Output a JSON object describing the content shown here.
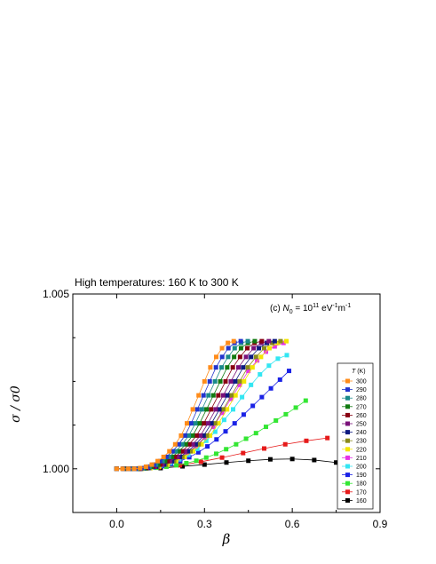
{
  "caption": "High temperatures: 160 K to 300 K",
  "chart_data": {
    "type": "line",
    "xlabel": "β",
    "ylabel": "σ / σ0",
    "xlim": [
      -0.15,
      0.9
    ],
    "ylim": [
      0.99875,
      1.005
    ],
    "xticks": [
      0.0,
      0.3,
      0.6,
      0.9
    ],
    "xtick_labels": [
      "0.0",
      "0.3",
      "0.6",
      "0.9"
    ],
    "yticks": [
      1.0,
      1.005
    ],
    "ytick_labels": [
      "1.000",
      "1.005"
    ],
    "annotation": {
      "prefix": "(c) ",
      "symbol": "N",
      "symbol_sub": "0",
      "equals": " = 10",
      "exp": "11",
      "unit1": " eV",
      "unit1_exp": "-1",
      "unit2": "m",
      "unit2_exp": "-1"
    },
    "legend_title": {
      "symbol": "T",
      "unit": " (K)"
    },
    "legend_position": "right",
    "series": [
      {
        "name": "300",
        "color": "#ff8c1a",
        "x": [
          0.0,
          0.02,
          0.04,
          0.06,
          0.08,
          0.1,
          0.12,
          0.14,
          0.16,
          0.18,
          0.2,
          0.22,
          0.24,
          0.26,
          0.28,
          0.3,
          0.32,
          0.34,
          0.36,
          0.38,
          0.4
        ],
        "y": [
          1.0,
          1.0,
          1.0,
          1.0,
          1.00002,
          1.00006,
          1.00012,
          1.00022,
          1.00034,
          1.0005,
          1.0007,
          1.00095,
          1.0013,
          1.0017,
          1.0021,
          1.0025,
          1.0029,
          1.0032,
          1.00345,
          1.0036,
          1.00365
        ]
      },
      {
        "name": "290",
        "color": "#2233cc",
        "x": [
          0.0,
          0.0212,
          0.0424,
          0.0636,
          0.0848,
          0.106,
          0.1272,
          0.1484,
          0.1696,
          0.1908,
          0.212,
          0.2332,
          0.2544,
          0.2756,
          0.2968,
          0.318,
          0.3392,
          0.3604,
          0.3816,
          0.4028,
          0.424
        ],
        "y": [
          1.0,
          1.0,
          1.0,
          1.0,
          1.00002,
          1.00006,
          1.00012,
          1.00022,
          1.00034,
          1.0005,
          1.0007,
          1.00095,
          1.0013,
          1.0017,
          1.0021,
          1.0025,
          1.0029,
          1.0032,
          1.00345,
          1.0036,
          1.00365
        ]
      },
      {
        "name": "280",
        "color": "#1a8a8a",
        "x": [
          0.0,
          0.0224,
          0.0448,
          0.0672,
          0.0896,
          0.112,
          0.1344,
          0.1568,
          0.1792,
          0.2016,
          0.224,
          0.2464,
          0.2688,
          0.2912,
          0.3136,
          0.336,
          0.3584,
          0.3808,
          0.4032,
          0.4256,
          0.448
        ],
        "y": [
          1.0,
          1.0,
          1.0,
          1.0,
          1.00002,
          1.00006,
          1.00012,
          1.00022,
          1.00034,
          1.0005,
          1.0007,
          1.00095,
          1.0013,
          1.0017,
          1.0021,
          1.0025,
          1.0029,
          1.0032,
          1.00345,
          1.0036,
          1.00365
        ]
      },
      {
        "name": "270",
        "color": "#117a11",
        "x": [
          0.0,
          0.0236,
          0.0472,
          0.0708,
          0.0944,
          0.118,
          0.1416,
          0.1652,
          0.1888,
          0.2124,
          0.236,
          0.2596,
          0.2832,
          0.3068,
          0.3304,
          0.354,
          0.3776,
          0.4012,
          0.4248,
          0.4484,
          0.472
        ],
        "y": [
          1.0,
          1.0,
          1.0,
          1.0,
          1.00002,
          1.00006,
          1.00012,
          1.00022,
          1.00034,
          1.0005,
          1.0007,
          1.00095,
          1.0013,
          1.0017,
          1.0021,
          1.0025,
          1.0029,
          1.0032,
          1.00345,
          1.0036,
          1.00365
        ]
      },
      {
        "name": "260",
        "color": "#880011",
        "x": [
          0.0,
          0.0248,
          0.0496,
          0.0744,
          0.0992,
          0.124,
          0.1488,
          0.1736,
          0.1984,
          0.2232,
          0.248,
          0.2728,
          0.2976,
          0.3224,
          0.3472,
          0.372,
          0.3968,
          0.4216,
          0.4464,
          0.4712,
          0.496
        ],
        "y": [
          1.0,
          1.0,
          1.0,
          1.0,
          1.00002,
          1.00006,
          1.00012,
          1.00022,
          1.00034,
          1.0005,
          1.0007,
          1.00095,
          1.0013,
          1.0017,
          1.0021,
          1.0025,
          1.0029,
          1.0032,
          1.00345,
          1.0036,
          1.00365
        ]
      },
      {
        "name": "250",
        "color": "#7a117a",
        "x": [
          0.0,
          0.026,
          0.052,
          0.078,
          0.104,
          0.13,
          0.156,
          0.182,
          0.208,
          0.234,
          0.26,
          0.286,
          0.312,
          0.338,
          0.364,
          0.39,
          0.416,
          0.442,
          0.468,
          0.494,
          0.52
        ],
        "y": [
          1.0,
          1.0,
          1.0,
          1.0,
          1.00002,
          1.00006,
          1.00012,
          1.00022,
          1.00034,
          1.0005,
          1.0007,
          1.00095,
          1.0013,
          1.0017,
          1.0021,
          1.0025,
          1.0029,
          1.0032,
          1.00345,
          1.0036,
          1.00365
        ]
      },
      {
        "name": "240",
        "color": "#0d1a80",
        "x": [
          0.0,
          0.027,
          0.054,
          0.081,
          0.108,
          0.135,
          0.162,
          0.189,
          0.216,
          0.243,
          0.27,
          0.297,
          0.324,
          0.351,
          0.378,
          0.405,
          0.432,
          0.459,
          0.486,
          0.513,
          0.54
        ],
        "y": [
          1.0,
          1.0,
          1.0,
          1.0,
          1.00002,
          1.00006,
          1.00012,
          1.00022,
          1.00034,
          1.0005,
          1.0007,
          1.00095,
          1.0013,
          1.0017,
          1.0021,
          1.0025,
          1.0029,
          1.0032,
          1.00345,
          1.0036,
          1.00365
        ]
      },
      {
        "name": "230",
        "color": "#8a8a1a",
        "x": [
          0.0,
          0.028,
          0.056,
          0.084,
          0.112,
          0.14,
          0.168,
          0.196,
          0.224,
          0.252,
          0.28,
          0.308,
          0.336,
          0.364,
          0.392,
          0.42,
          0.448,
          0.476,
          0.504,
          0.532,
          0.56
        ],
        "y": [
          1.0,
          1.0,
          1.0,
          1.0,
          1.00002,
          1.00006,
          1.00012,
          1.00022,
          1.00034,
          1.0005,
          1.0007,
          1.00095,
          1.0013,
          1.0017,
          1.0021,
          1.0025,
          1.0029,
          1.0032,
          1.00345,
          1.0036,
          1.00365
        ]
      },
      {
        "name": "220",
        "color": "#f2e600",
        "x": [
          0.0,
          0.029,
          0.058,
          0.087,
          0.116,
          0.145,
          0.174,
          0.203,
          0.232,
          0.261,
          0.29,
          0.319,
          0.348,
          0.377,
          0.406,
          0.435,
          0.464,
          0.493,
          0.522,
          0.551,
          0.58
        ],
        "y": [
          1.0,
          1.0,
          1.0,
          1.0,
          1.00002,
          1.00006,
          1.00012,
          1.00022,
          1.00034,
          1.0005,
          1.0007,
          1.00095,
          1.0013,
          1.0017,
          1.0021,
          1.0025,
          1.0029,
          1.0032,
          1.00345,
          1.0036,
          1.00365
        ]
      },
      {
        "name": "210",
        "color": "#e633e6",
        "x": [
          0.0,
          0.03,
          0.06,
          0.09,
          0.12,
          0.15,
          0.18,
          0.21,
          0.24,
          0.27,
          0.3,
          0.33,
          0.36,
          0.39,
          0.42,
          0.45,
          0.48,
          0.51,
          0.54,
          0.57
        ],
        "y": [
          1.0,
          1.0,
          1.0,
          1.00002,
          1.00006,
          1.00012,
          1.0002,
          1.0003,
          1.00045,
          1.00065,
          1.0009,
          1.0012,
          1.0016,
          1.002,
          1.0024,
          1.0028,
          1.0031,
          1.00335,
          1.0035,
          1.0036
        ]
      },
      {
        "name": "200",
        "color": "#33e6f2",
        "x": [
          0.0,
          0.0306,
          0.0612,
          0.0918,
          0.1224,
          0.153,
          0.1836,
          0.2142,
          0.2448,
          0.2754,
          0.306,
          0.3366,
          0.3672,
          0.3978,
          0.4284,
          0.459,
          0.4896,
          0.5202,
          0.5508,
          0.5814
        ],
        "y": [
          1.0,
          1.0,
          1.0,
          1.00002,
          1.00005,
          1.0001,
          1.00017,
          1.00027,
          1.0004,
          1.00057,
          1.0008,
          1.00106,
          1.0014,
          1.0017,
          1.00205,
          1.0024,
          1.0027,
          1.00295,
          1.00315,
          1.00325
        ]
      },
      {
        "name": "190",
        "color": "#1a22e6",
        "x": [
          0.0,
          0.031,
          0.062,
          0.093,
          0.124,
          0.155,
          0.186,
          0.217,
          0.248,
          0.279,
          0.31,
          0.341,
          0.372,
          0.403,
          0.434,
          0.465,
          0.496,
          0.527,
          0.558,
          0.589
        ],
        "y": [
          1.0,
          1.0,
          1.0,
          1.00001,
          1.00004,
          1.00008,
          1.00014,
          1.00022,
          1.00033,
          1.00047,
          1.00064,
          1.00084,
          1.00107,
          1.0013,
          1.00155,
          1.0018,
          1.00205,
          1.0023,
          1.00255,
          1.0028
        ]
      },
      {
        "name": "180",
        "color": "#33e633",
        "x": [
          0.0,
          0.034,
          0.068,
          0.102,
          0.136,
          0.17,
          0.204,
          0.238,
          0.272,
          0.306,
          0.34,
          0.374,
          0.408,
          0.442,
          0.476,
          0.51,
          0.544,
          0.578,
          0.612,
          0.646
        ],
        "y": [
          1.0,
          1.0,
          1.0,
          1.00001,
          1.00003,
          1.00006,
          1.0001,
          1.00016,
          1.00023,
          1.00032,
          1.00043,
          1.00056,
          1.0007,
          1.00086,
          1.00102,
          1.0012,
          1.00138,
          1.00156,
          1.00175,
          1.00195
        ]
      },
      {
        "name": "170",
        "color": "#e61a1a",
        "x": [
          0.0,
          0.072,
          0.144,
          0.216,
          0.288,
          0.36,
          0.432,
          0.504,
          0.576,
          0.648,
          0.72
        ],
        "y": [
          1.0,
          1.0,
          1.00004,
          1.0001,
          1.0002,
          1.00032,
          1.00045,
          1.00058,
          1.0007,
          1.0008,
          1.00088
        ]
      },
      {
        "name": "160",
        "color": "#000000",
        "x": [
          0.0,
          0.075,
          0.15,
          0.225,
          0.3,
          0.375,
          0.45,
          0.525,
          0.6,
          0.675,
          0.75
        ],
        "y": [
          1.0,
          1.0,
          1.00002,
          1.00007,
          1.00012,
          1.00018,
          1.00023,
          1.00027,
          1.00028,
          1.00025,
          1.00018
        ]
      }
    ]
  }
}
